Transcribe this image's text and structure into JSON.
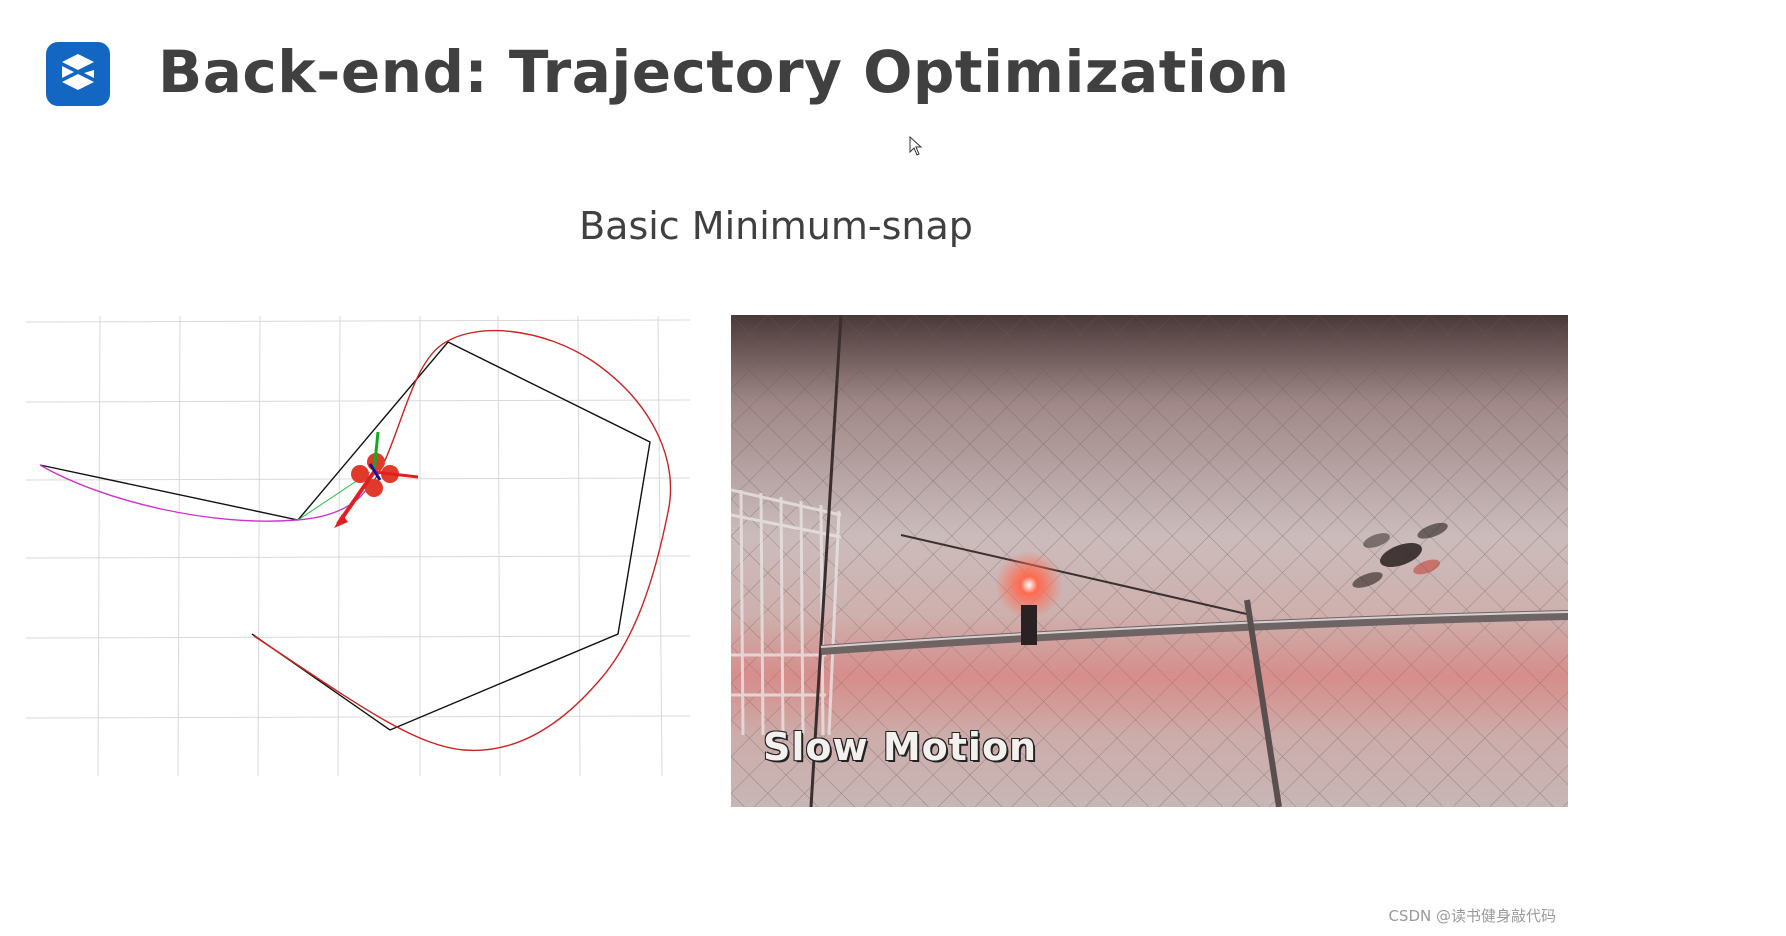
{
  "slide": {
    "title": "Back-end: Trajectory Optimization",
    "subtitle": "Basic Minimum-snap",
    "logo_icon": "logo-s-icon",
    "accent_color": "#1466c3"
  },
  "video": {
    "caption": "Slow Motion"
  },
  "watermark": "CSDN @读书健身敲代码"
}
